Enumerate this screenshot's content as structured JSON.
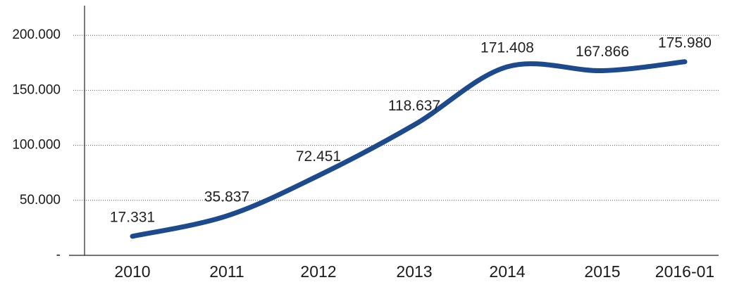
{
  "chart_data": {
    "type": "line",
    "categories": [
      "2010",
      "2011",
      "2012",
      "2013",
      "2014",
      "2015",
      "2016-01"
    ],
    "values": [
      17331,
      35837,
      72451,
      118637,
      171408,
      167866,
      175980
    ],
    "value_labels": [
      "17.331",
      "35.837",
      "72.451",
      "118.637",
      "171.408",
      "167.866",
      "175.980"
    ],
    "color": "#1c4a8c",
    "ylim": [
      0,
      227000
    ],
    "yticks": [
      {
        "value": 0,
        "label": "-"
      },
      {
        "value": 50000,
        "label": "50.000"
      },
      {
        "value": 100000,
        "label": "100.000"
      },
      {
        "value": 150000,
        "label": "150.000"
      },
      {
        "value": 200000,
        "label": "200.000"
      }
    ],
    "grid": true
  }
}
